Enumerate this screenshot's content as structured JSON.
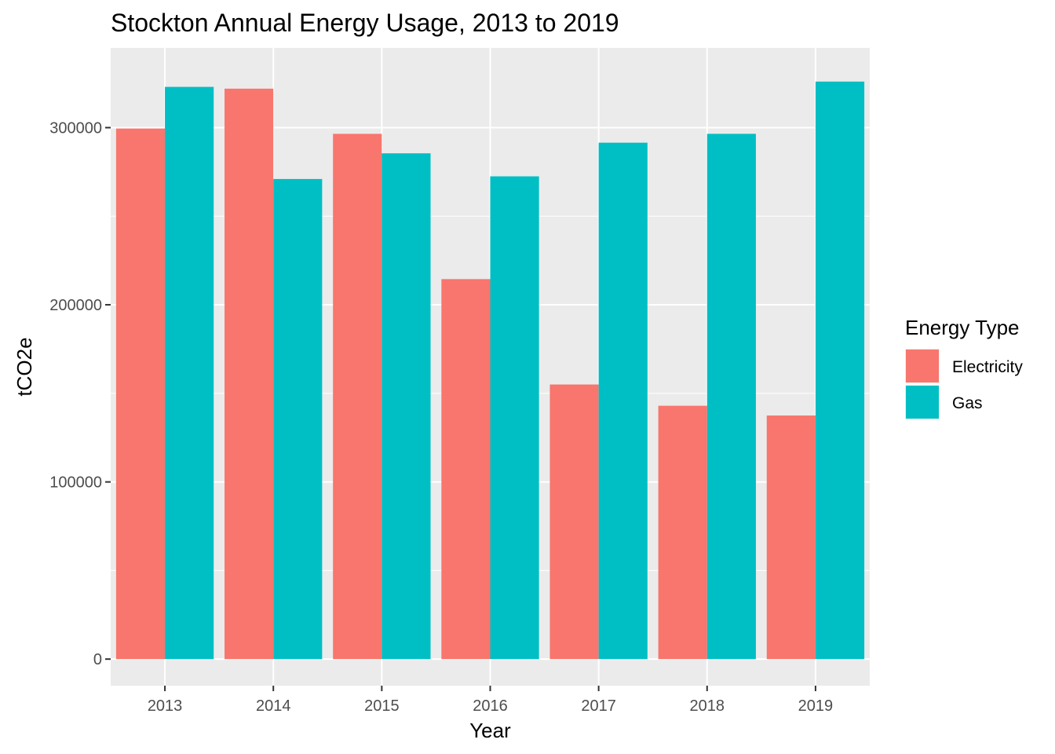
{
  "chart_data": {
    "type": "bar",
    "title": "Stockton Annual Energy Usage, 2013 to 2019",
    "xlabel": "Year",
    "ylabel": "tCO2e",
    "categories": [
      "2013",
      "2014",
      "2015",
      "2016",
      "2017",
      "2018",
      "2019"
    ],
    "series": [
      {
        "name": "Electricity",
        "color": "#F8766D",
        "values": [
          299500,
          322000,
          296500,
          214500,
          155000,
          143000,
          137500
        ]
      },
      {
        "name": "Gas",
        "color": "#00BFC4",
        "values": [
          323000,
          271000,
          285500,
          272500,
          291500,
          296500,
          326000
        ]
      }
    ],
    "y_ticks": [
      0,
      100000,
      200000,
      300000
    ],
    "y_tick_labels": [
      "0",
      "100000",
      "200000",
      "300000"
    ],
    "ylim": [
      -15000,
      345000
    ],
    "grid": true,
    "legend": {
      "title": "Energy Type",
      "position": "right"
    },
    "panel_background": "#EBEBEB",
    "grid_color": "#FFFFFF"
  }
}
